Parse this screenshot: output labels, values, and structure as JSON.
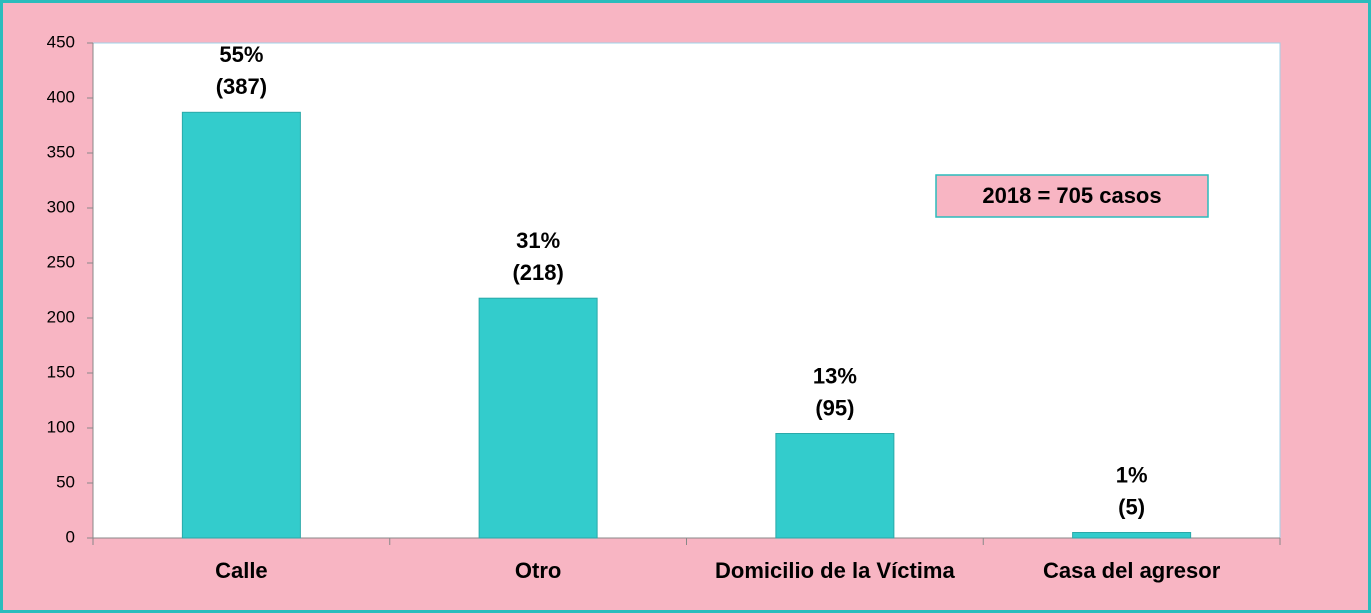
{
  "chart_data": {
    "type": "bar",
    "categories": [
      "Calle",
      "Otro",
      "Domicilio de la Víctima",
      "Casa del agresor"
    ],
    "values": [
      387,
      218,
      95,
      5
    ],
    "value_labels": [
      "(387)",
      "(218)",
      "(95)",
      "(5)"
    ],
    "percent_labels": [
      "55%",
      "31%",
      "13%",
      "1%"
    ],
    "color": "#33cccc",
    "ylim": [
      0,
      450
    ],
    "yticks": [
      0,
      50,
      100,
      150,
      200,
      250,
      300,
      350,
      400,
      450
    ],
    "annotation": "2018 = 705  casos"
  }
}
